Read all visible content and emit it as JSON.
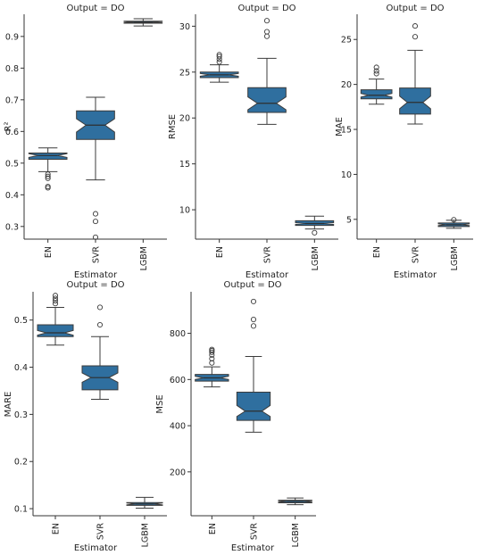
{
  "colors": {
    "box_fill": "#2f6f9f",
    "line": "#3b3b3b",
    "axis": "#333333"
  },
  "chart_data": [
    {
      "id": "r2",
      "type": "boxplot",
      "notched": true,
      "title": "Output = DO",
      "xlabel": "Estimator",
      "ylabel": "R²",
      "categories": [
        "EN",
        "SVR",
        "LGBM"
      ],
      "ylim": [
        0.26,
        0.97
      ],
      "yticks": [
        0.3,
        0.4,
        0.5,
        0.6,
        0.7,
        0.8,
        0.9
      ],
      "ytick_labels": [
        "0.3",
        "0.4",
        "0.5",
        "0.6",
        "0.7",
        "0.8",
        "0.9"
      ],
      "boxes": [
        {
          "category": "EN",
          "whislo": 0.473,
          "q1": 0.512,
          "med": 0.524,
          "q3": 0.532,
          "whishi": 0.548,
          "notch_lo": 0.518,
          "notch_hi": 0.53,
          "fliers": [
            0.465,
            0.458,
            0.452,
            0.426,
            0.422
          ]
        },
        {
          "category": "SVR",
          "whislo": 0.447,
          "q1": 0.575,
          "med": 0.62,
          "q3": 0.665,
          "whishi": 0.708,
          "notch_lo": 0.598,
          "notch_hi": 0.64,
          "fliers": [
            0.34,
            0.316,
            0.266
          ]
        },
        {
          "category": "LGBM",
          "whislo": 0.933,
          "q1": 0.942,
          "med": 0.945,
          "q3": 0.948,
          "whishi": 0.956,
          "notch_lo": 0.943,
          "notch_hi": 0.947,
          "fliers": []
        }
      ]
    },
    {
      "id": "rmse",
      "type": "boxplot",
      "notched": true,
      "title": "Output = DO",
      "xlabel": "Estimator",
      "ylabel": "RMSE",
      "categories": [
        "EN",
        "SVR",
        "LGBM"
      ],
      "ylim": [
        6.8,
        31.3
      ],
      "yticks": [
        10,
        15,
        20,
        25,
        30
      ],
      "ytick_labels": [
        "10",
        "15",
        "20",
        "25",
        "30"
      ],
      "boxes": [
        {
          "category": "EN",
          "whislo": 23.9,
          "q1": 24.4,
          "med": 24.7,
          "q3": 25.0,
          "whishi": 25.8,
          "notch_lo": 24.55,
          "notch_hi": 24.85,
          "fliers": [
            26.1,
            26.4,
            26.7,
            26.9
          ]
        },
        {
          "category": "SVR",
          "whislo": 19.3,
          "q1": 20.6,
          "med": 21.6,
          "q3": 23.3,
          "whishi": 26.5,
          "notch_lo": 20.9,
          "notch_hi": 22.3,
          "fliers": [
            28.9,
            29.4,
            30.6
          ]
        },
        {
          "category": "LGBM",
          "whislo": 7.9,
          "q1": 8.3,
          "med": 8.5,
          "q3": 8.8,
          "whishi": 9.3,
          "notch_lo": 8.4,
          "notch_hi": 8.6,
          "fliers": [
            7.5
          ]
        }
      ]
    },
    {
      "id": "mae",
      "type": "boxplot",
      "notched": true,
      "title": "Output = DO",
      "xlabel": "Estimator",
      "ylabel": "MAE",
      "categories": [
        "EN",
        "SVR",
        "LGBM"
      ],
      "ylim": [
        2.8,
        27.8
      ],
      "yticks": [
        5,
        10,
        15,
        20,
        25
      ],
      "ytick_labels": [
        "5",
        "10",
        "15",
        "20",
        "25"
      ],
      "boxes": [
        {
          "category": "EN",
          "whislo": 17.8,
          "q1": 18.4,
          "med": 18.8,
          "q3": 19.4,
          "whishi": 20.6,
          "notch_lo": 18.6,
          "notch_hi": 19.0,
          "fliers": [
            21.2,
            21.5,
            21.9
          ]
        },
        {
          "category": "SVR",
          "whislo": 15.6,
          "q1": 16.7,
          "med": 18.0,
          "q3": 19.6,
          "whishi": 23.8,
          "notch_lo": 17.3,
          "notch_hi": 18.7,
          "fliers": [
            25.3,
            26.5
          ]
        },
        {
          "category": "LGBM",
          "whislo": 4.0,
          "q1": 4.2,
          "med": 4.4,
          "q3": 4.6,
          "whishi": 4.9,
          "notch_lo": 4.3,
          "notch_hi": 4.5,
          "fliers": [
            4.95
          ]
        }
      ]
    },
    {
      "id": "mare",
      "type": "boxplot",
      "notched": true,
      "title": "Output = DO",
      "xlabel": "Estimator",
      "ylabel": "MARE",
      "categories": [
        "EN",
        "SVR",
        "LGBM"
      ],
      "ylim": [
        0.085,
        0.56
      ],
      "yticks": [
        0.1,
        0.2,
        0.3,
        0.4,
        0.5
      ],
      "ytick_labels": [
        "0.1",
        "0.2",
        "0.3",
        "0.4",
        "0.5"
      ],
      "boxes": [
        {
          "category": "EN",
          "whislo": 0.447,
          "q1": 0.465,
          "med": 0.473,
          "q3": 0.49,
          "whishi": 0.527,
          "notch_lo": 0.468,
          "notch_hi": 0.478,
          "fliers": [
            0.535,
            0.541,
            0.546,
            0.552
          ]
        },
        {
          "category": "SVR",
          "whislo": 0.332,
          "q1": 0.352,
          "med": 0.378,
          "q3": 0.403,
          "whishi": 0.465,
          "notch_lo": 0.368,
          "notch_hi": 0.388,
          "fliers": [
            0.49,
            0.527
          ]
        },
        {
          "category": "LGBM",
          "whislo": 0.101,
          "q1": 0.107,
          "med": 0.11,
          "q3": 0.113,
          "whishi": 0.124,
          "notch_lo": 0.108,
          "notch_hi": 0.112,
          "fliers": []
        }
      ]
    },
    {
      "id": "mse",
      "type": "boxplot",
      "notched": true,
      "title": "Output = DO",
      "xlabel": "Estimator",
      "ylabel": "MSE",
      "categories": [
        "EN",
        "SVR",
        "LGBM"
      ],
      "ylim": [
        10,
        980
      ],
      "yticks": [
        200,
        400,
        600,
        800
      ],
      "ytick_labels": [
        "200",
        "400",
        "600",
        "800"
      ],
      "boxes": [
        {
          "category": "EN",
          "whislo": 568,
          "q1": 593,
          "med": 607,
          "q3": 622,
          "whishi": 655,
          "notch_lo": 600,
          "notch_hi": 614,
          "fliers": [
            672,
            690,
            706,
            718,
            725,
            730
          ]
        },
        {
          "category": "SVR",
          "whislo": 372,
          "q1": 423,
          "med": 463,
          "q3": 545,
          "whishi": 700,
          "notch_lo": 440,
          "notch_hi": 488,
          "fliers": [
            832,
            860,
            938
          ]
        },
        {
          "category": "LGBM",
          "whislo": 58,
          "q1": 66,
          "med": 72,
          "q3": 77,
          "whishi": 87,
          "notch_lo": 69,
          "notch_hi": 75,
          "fliers": []
        }
      ]
    }
  ]
}
